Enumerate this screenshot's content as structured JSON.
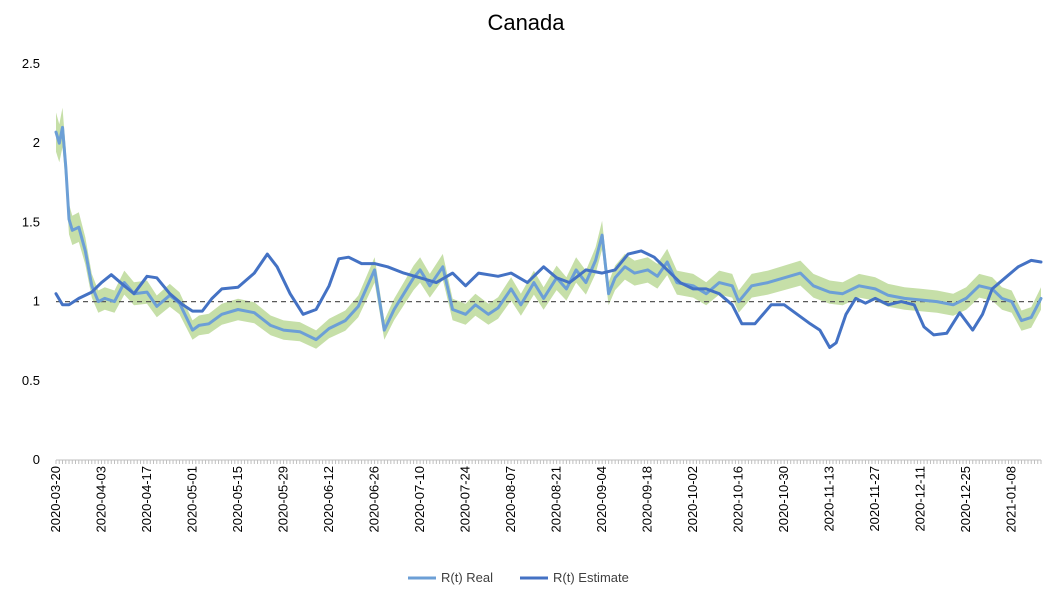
{
  "chart_data": {
    "type": "line",
    "title": "Canada",
    "xlabel": "",
    "ylabel": "",
    "ylim": [
      0,
      2.5
    ],
    "yticks": [
      "0",
      "0.5",
      "1",
      "1.5",
      "2",
      "2.5"
    ],
    "x_tick_labels": [
      "2020-03-20",
      "2020-04-03",
      "2020-04-17",
      "2020-05-01",
      "2020-05-15",
      "2020-05-29",
      "2020-06-12",
      "2020-06-26",
      "2020-07-10",
      "2020-07-24",
      "2020-08-07",
      "2020-08-21",
      "2020-09-04",
      "2020-09-18",
      "2020-10-02",
      "2020-10-16",
      "2020-10-30",
      "2020-11-13",
      "2020-11-27",
      "2020-12-11",
      "2020-12-25",
      "2021-01-08"
    ],
    "x_start": "2020-03-20",
    "x_end": "2021-01-17",
    "reference_line": {
      "y": 1,
      "style": "dashed",
      "color": "#595959"
    },
    "band_color": "#c6dfa8",
    "legend_position": "bottom",
    "series": [
      {
        "name": "R(t) Real",
        "color": "#6c9fd6",
        "dates": [
          "2020-03-20",
          "2020-03-21",
          "2020-03-22",
          "2020-03-23",
          "2020-03-24",
          "2020-03-25",
          "2020-03-27",
          "2020-03-29",
          "2020-03-31",
          "2020-04-02",
          "2020-04-04",
          "2020-04-07",
          "2020-04-10",
          "2020-04-13",
          "2020-04-17",
          "2020-04-20",
          "2020-04-24",
          "2020-04-27",
          "2020-05-01",
          "2020-05-03",
          "2020-05-06",
          "2020-05-10",
          "2020-05-15",
          "2020-05-20",
          "2020-05-25",
          "2020-05-29",
          "2020-06-03",
          "2020-06-08",
          "2020-06-12",
          "2020-06-17",
          "2020-06-21",
          "2020-06-26",
          "2020-06-29",
          "2020-07-02",
          "2020-07-05",
          "2020-07-08",
          "2020-07-10",
          "2020-07-13",
          "2020-07-17",
          "2020-07-20",
          "2020-07-24",
          "2020-07-27",
          "2020-07-31",
          "2020-08-03",
          "2020-08-07",
          "2020-08-10",
          "2020-08-14",
          "2020-08-17",
          "2020-08-21",
          "2020-08-24",
          "2020-08-27",
          "2020-08-30",
          "2020-09-02",
          "2020-09-04",
          "2020-09-06",
          "2020-09-08",
          "2020-09-11",
          "2020-09-14",
          "2020-09-18",
          "2020-09-21",
          "2020-09-24",
          "2020-09-27",
          "2020-10-02",
          "2020-10-06",
          "2020-10-10",
          "2020-10-14",
          "2020-10-16",
          "2020-10-20",
          "2020-10-25",
          "2020-10-30",
          "2020-11-04",
          "2020-11-08",
          "2020-11-13",
          "2020-11-17",
          "2020-11-22",
          "2020-11-27",
          "2020-12-01",
          "2020-12-06",
          "2020-12-11",
          "2020-12-16",
          "2020-12-21",
          "2020-12-25",
          "2020-12-29",
          "2021-01-02",
          "2021-01-05",
          "2021-01-08",
          "2021-01-11",
          "2021-01-14",
          "2021-01-17"
        ],
        "values": [
          2.07,
          2.0,
          2.1,
          1.85,
          1.52,
          1.45,
          1.47,
          1.32,
          1.1,
          1.0,
          1.02,
          1.0,
          1.12,
          1.05,
          1.06,
          0.97,
          1.04,
          0.99,
          0.82,
          0.85,
          0.86,
          0.92,
          0.95,
          0.93,
          0.85,
          0.82,
          0.81,
          0.76,
          0.83,
          0.88,
          0.97,
          1.2,
          0.82,
          0.95,
          1.05,
          1.15,
          1.2,
          1.1,
          1.22,
          0.95,
          0.92,
          0.98,
          0.92,
          0.96,
          1.08,
          0.98,
          1.12,
          1.02,
          1.15,
          1.08,
          1.2,
          1.12,
          1.26,
          1.42,
          1.05,
          1.15,
          1.22,
          1.18,
          1.2,
          1.16,
          1.25,
          1.12,
          1.1,
          1.05,
          1.12,
          1.1,
          1.0,
          1.1,
          1.12,
          1.15,
          1.18,
          1.1,
          1.06,
          1.05,
          1.1,
          1.08,
          1.04,
          1.02,
          1.01,
          1.0,
          0.98,
          1.02,
          1.1,
          1.08,
          1.02,
          1.0,
          0.88,
          0.9,
          1.02
        ]
      },
      {
        "name": "R(t) Estimate",
        "color": "#4472c4",
        "dates": [
          "2020-03-20",
          "2020-03-22",
          "2020-03-24",
          "2020-03-27",
          "2020-03-31",
          "2020-04-03",
          "2020-04-06",
          "2020-04-10",
          "2020-04-13",
          "2020-04-17",
          "2020-04-20",
          "2020-04-24",
          "2020-04-28",
          "2020-05-01",
          "2020-05-04",
          "2020-05-07",
          "2020-05-10",
          "2020-05-15",
          "2020-05-20",
          "2020-05-24",
          "2020-05-27",
          "2020-05-31",
          "2020-06-04",
          "2020-06-08",
          "2020-06-12",
          "2020-06-15",
          "2020-06-18",
          "2020-06-22",
          "2020-06-26",
          "2020-06-30",
          "2020-07-05",
          "2020-07-10",
          "2020-07-15",
          "2020-07-20",
          "2020-07-24",
          "2020-07-28",
          "2020-08-03",
          "2020-08-07",
          "2020-08-12",
          "2020-08-17",
          "2020-08-21",
          "2020-08-25",
          "2020-08-30",
          "2020-09-04",
          "2020-09-08",
          "2020-09-12",
          "2020-09-16",
          "2020-09-20",
          "2020-09-24",
          "2020-09-28",
          "2020-10-02",
          "2020-10-06",
          "2020-10-10",
          "2020-10-14",
          "2020-10-17",
          "2020-10-21",
          "2020-10-26",
          "2020-10-30",
          "2020-11-03",
          "2020-11-07",
          "2020-11-10",
          "2020-11-13",
          "2020-11-15",
          "2020-11-18",
          "2020-11-21",
          "2020-11-24",
          "2020-11-27",
          "2020-12-01",
          "2020-12-05",
          "2020-12-09",
          "2020-12-12",
          "2020-12-15",
          "2020-12-19",
          "2020-12-23",
          "2020-12-27",
          "2020-12-30",
          "2021-01-02",
          "2021-01-06",
          "2021-01-10",
          "2021-01-14",
          "2021-01-17"
        ],
        "values": [
          1.05,
          0.98,
          0.98,
          1.02,
          1.06,
          1.12,
          1.17,
          1.1,
          1.05,
          1.16,
          1.15,
          1.05,
          0.98,
          0.94,
          0.94,
          1.02,
          1.08,
          1.09,
          1.18,
          1.3,
          1.22,
          1.05,
          0.92,
          0.95,
          1.1,
          1.27,
          1.28,
          1.24,
          1.24,
          1.22,
          1.18,
          1.15,
          1.12,
          1.18,
          1.1,
          1.18,
          1.16,
          1.18,
          1.12,
          1.22,
          1.15,
          1.12,
          1.2,
          1.18,
          1.2,
          1.3,
          1.32,
          1.28,
          1.2,
          1.12,
          1.08,
          1.08,
          1.05,
          0.98,
          0.86,
          0.86,
          0.98,
          0.98,
          0.92,
          0.86,
          0.82,
          0.71,
          0.74,
          0.92,
          1.02,
          0.99,
          1.02,
          0.98,
          1.0,
          0.98,
          0.84,
          0.79,
          0.8,
          0.93,
          0.82,
          0.92,
          1.08,
          1.15,
          1.22,
          1.26,
          1.25
        ]
      }
    ]
  }
}
